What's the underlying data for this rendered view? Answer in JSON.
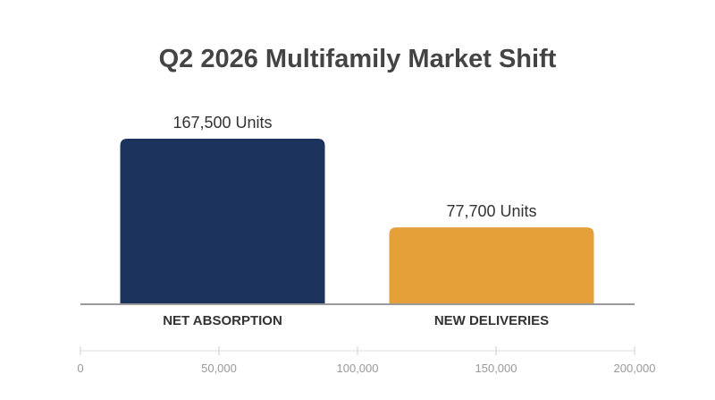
{
  "chart_data": {
    "type": "bar",
    "title": "Q2 2026 Multifamily Market Shift",
    "categories": [
      "NET ABSORPTION",
      "NEW DELIVERIES"
    ],
    "values": [
      167500,
      77700
    ],
    "data_labels": [
      "167,500 Units",
      "77,700 Units"
    ],
    "colors": [
      "#1c335e",
      "#e5a03a"
    ],
    "xlabel": "",
    "ylabel": "",
    "ylim": [
      0,
      200000
    ],
    "axis_ticks": [
      0,
      50000,
      100000,
      150000,
      200000
    ],
    "axis_tick_labels": [
      "0",
      "50,000",
      "100,000",
      "150,000",
      "200,000"
    ],
    "grid": false,
    "legend": "none"
  }
}
